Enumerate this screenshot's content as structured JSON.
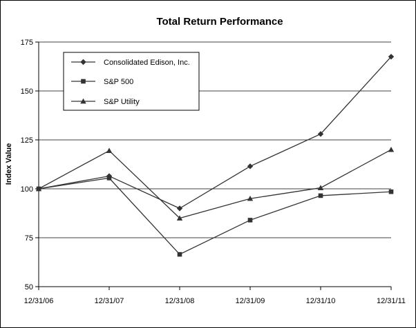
{
  "chart_data": {
    "type": "line",
    "title": "Total Return Performance",
    "xlabel": "",
    "ylabel": "Index Value",
    "categories": [
      "12/31/06",
      "12/31/07",
      "12/31/08",
      "12/31/09",
      "12/31/10",
      "12/31/11"
    ],
    "ylim": [
      50,
      175
    ],
    "yticks": [
      "50",
      "75",
      "100",
      "125",
      "150",
      "175"
    ],
    "grid": "horizontal",
    "legend_position": "top-left",
    "series": [
      {
        "name": "Consolidated Edison, Inc.",
        "marker": "diamond",
        "color": "#333333",
        "values": [
          100,
          106.5,
          90,
          111.5,
          128,
          167.5
        ]
      },
      {
        "name": "S&P 500",
        "marker": "square",
        "color": "#333333",
        "values": [
          100,
          105.5,
          66.5,
          84,
          96.5,
          98.5
        ]
      },
      {
        "name": "S&P Utility",
        "marker": "triangle",
        "color": "#333333",
        "values": [
          100,
          119.5,
          85,
          95,
          100.5,
          120
        ]
      }
    ]
  }
}
